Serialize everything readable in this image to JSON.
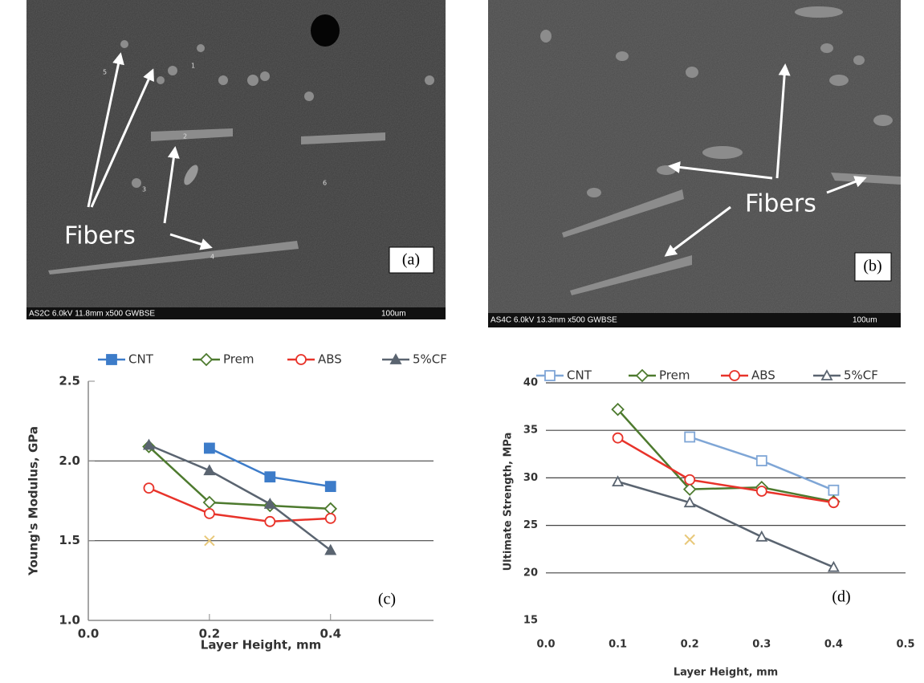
{
  "panels": [
    {
      "label": "(a)",
      "caption": "AS2C 6.0kV 11.8mm x500 GWBSE",
      "scale": "100um",
      "annotation": "Fibers",
      "numbers": [
        "1",
        "2",
        "3",
        "4",
        "5",
        "6"
      ]
    },
    {
      "label": "(b)",
      "caption": "AS4C 6.0kV 13.3mm x500 GWBSE",
      "scale": "100um",
      "annotation": "Fibers"
    }
  ],
  "chart_data": [
    {
      "type": "line",
      "panel_label": "(c)",
      "xlabel": "Layer Height, mm",
      "ylabel": "Young's Modulus, GPa",
      "xlim": [
        0,
        0.57
      ],
      "ylim": [
        1,
        2.5
      ],
      "xticks": [
        {
          "value": 0,
          "label": "0.0"
        },
        0.2,
        0.4
      ],
      "yticks": [
        {
          "value": 1,
          "label": "1.0"
        },
        1.5,
        {
          "value": 2,
          "label": "2.0"
        },
        2.5
      ],
      "grid": true,
      "spines": true,
      "series": [
        {
          "name": "CNT",
          "color": "#3d7cc9",
          "marker": "square",
          "filled": true,
          "x": [
            0.2,
            0.3,
            0.4
          ],
          "values": [
            2.08,
            1.9,
            1.84
          ]
        },
        {
          "name": "Prem",
          "color": "#4d7a2e",
          "marker": "diamond",
          "filled": false,
          "x": [
            0.1,
            0.2,
            0.3,
            0.4
          ],
          "values": [
            2.09,
            1.74,
            1.72,
            1.7
          ]
        },
        {
          "name": "ABS",
          "color": "#e8332a",
          "marker": "circle",
          "filled": false,
          "x": [
            0.1,
            0.2,
            0.3,
            0.4
          ],
          "values": [
            1.83,
            1.67,
            1.62,
            1.64
          ]
        },
        {
          "name": "5%CF",
          "color": "#5a6470",
          "marker": "triangle",
          "filled": true,
          "x": [
            0.1,
            0.2,
            0.3,
            0.4
          ],
          "values": [
            2.1,
            1.94,
            1.73,
            1.44
          ]
        }
      ],
      "extra_points": {
        "color": "#e8c87a",
        "x": [
          0.2
        ],
        "values": [
          1.5
        ]
      }
    },
    {
      "type": "line",
      "panel_label": "(d)",
      "xlabel": "Layer Height, mm",
      "ylabel": "Ultimate Strength, MPa",
      "xlim": [
        0,
        0.5
      ],
      "ylim": [
        15,
        40
      ],
      "xticks": [
        {
          "value": 0,
          "label": "0.0"
        },
        0.1,
        0.2,
        0.3,
        0.4,
        0.5
      ],
      "yticks": [
        15,
        20,
        25,
        30,
        35,
        40
      ],
      "grid": true,
      "spines": false,
      "series": [
        {
          "name": "CNT",
          "color": "#7fa6d6",
          "marker": "square",
          "filled": false,
          "x": [
            0.2,
            0.3,
            0.4
          ],
          "values": [
            34.3,
            31.8,
            28.7
          ]
        },
        {
          "name": "Prem",
          "color": "#4d7a2e",
          "marker": "diamond",
          "filled": false,
          "x": [
            0.1,
            0.2,
            0.3,
            0.4
          ],
          "values": [
            37.2,
            28.8,
            29.0,
            27.5
          ]
        },
        {
          "name": "ABS",
          "color": "#e8332a",
          "marker": "circle",
          "filled": false,
          "x": [
            0.1,
            0.2,
            0.3,
            0.4
          ],
          "values": [
            34.2,
            29.8,
            28.6,
            27.4
          ]
        },
        {
          "name": "5%CF",
          "color": "#5a6470",
          "marker": "triangle",
          "filled": false,
          "x": [
            0.1,
            0.2,
            0.3,
            0.4
          ],
          "values": [
            29.6,
            27.4,
            23.8,
            20.6
          ]
        }
      ],
      "extra_points": {
        "color": "#e8c87a",
        "x": [
          0.2
        ],
        "values": [
          23.5
        ]
      }
    }
  ]
}
